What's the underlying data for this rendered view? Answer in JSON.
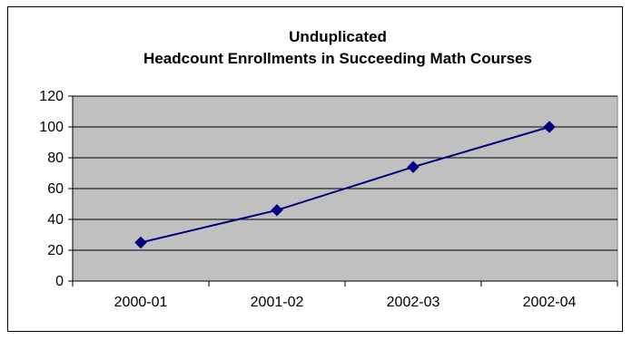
{
  "chart_data": {
    "type": "line",
    "title_lines": [
      "Unduplicated",
      "Headcount Enrollments in Succeeding Math Courses"
    ],
    "xlabel": "",
    "ylabel": "",
    "categories": [
      "2000-01",
      "2001-02",
      "2002-03",
      "2002-04"
    ],
    "series": [
      {
        "values": [
          25,
          46,
          74,
          100
        ]
      }
    ],
    "ylim": [
      0,
      120
    ],
    "yticks": [
      0,
      20,
      40,
      60,
      80,
      100,
      120
    ],
    "grid": true,
    "legend": "none",
    "colors": {
      "line": "#000080",
      "marker": "#000080",
      "plot_bg": "#c0c0c0",
      "gridline": "#000000"
    },
    "marker": "diamond"
  }
}
